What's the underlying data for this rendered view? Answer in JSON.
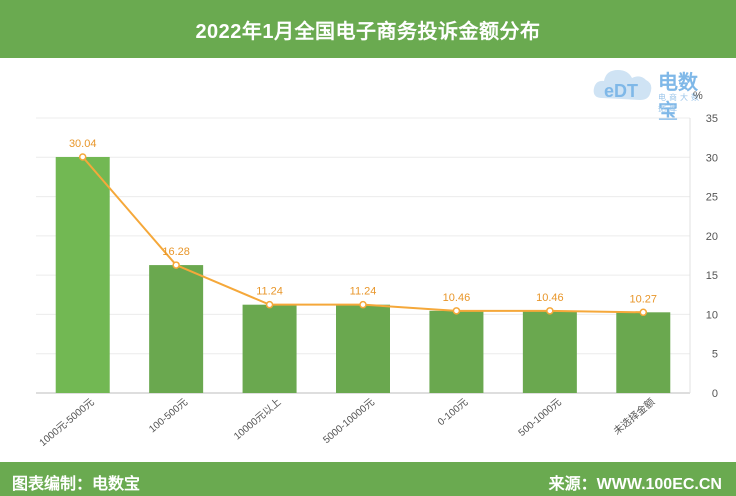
{
  "header": {
    "title": "2022年1月全国电子商务投诉金额分布"
  },
  "footer": {
    "left": "图表编制：电数宝",
    "right": "来源：WWW.100EC.CN"
  },
  "logo": {
    "brand": "电数宝",
    "tagline": "电商大数据库",
    "mark": "eDT"
  },
  "colors": {
    "bar_highlight": "#72b853",
    "bar": "#6aa84f",
    "line": "#f5a83a",
    "header": "#6aaa50"
  },
  "chart_data": {
    "type": "bar",
    "categories": [
      "1000元-5000元",
      "100-500元",
      "10000元以上",
      "5000-10000元",
      "0-100元",
      "500-1000元",
      "未选择金额"
    ],
    "values": [
      30.04,
      16.28,
      11.24,
      11.24,
      10.46,
      10.46,
      10.27
    ],
    "value_labels": [
      "30.04",
      "16.28",
      "11.24",
      "11.24",
      "10.46",
      "10.46",
      "10.27"
    ],
    "overlay_line": true,
    "title": "2022年1月全国电子商务投诉金额分布",
    "xlabel": "",
    "ylabel": "",
    "y_unit": "%",
    "ylim": [
      0,
      35
    ],
    "yticks": [
      "0",
      "5",
      "10",
      "15",
      "20",
      "25",
      "30",
      "35"
    ],
    "y_axis_side": "right",
    "grid": true,
    "legend": "none"
  }
}
